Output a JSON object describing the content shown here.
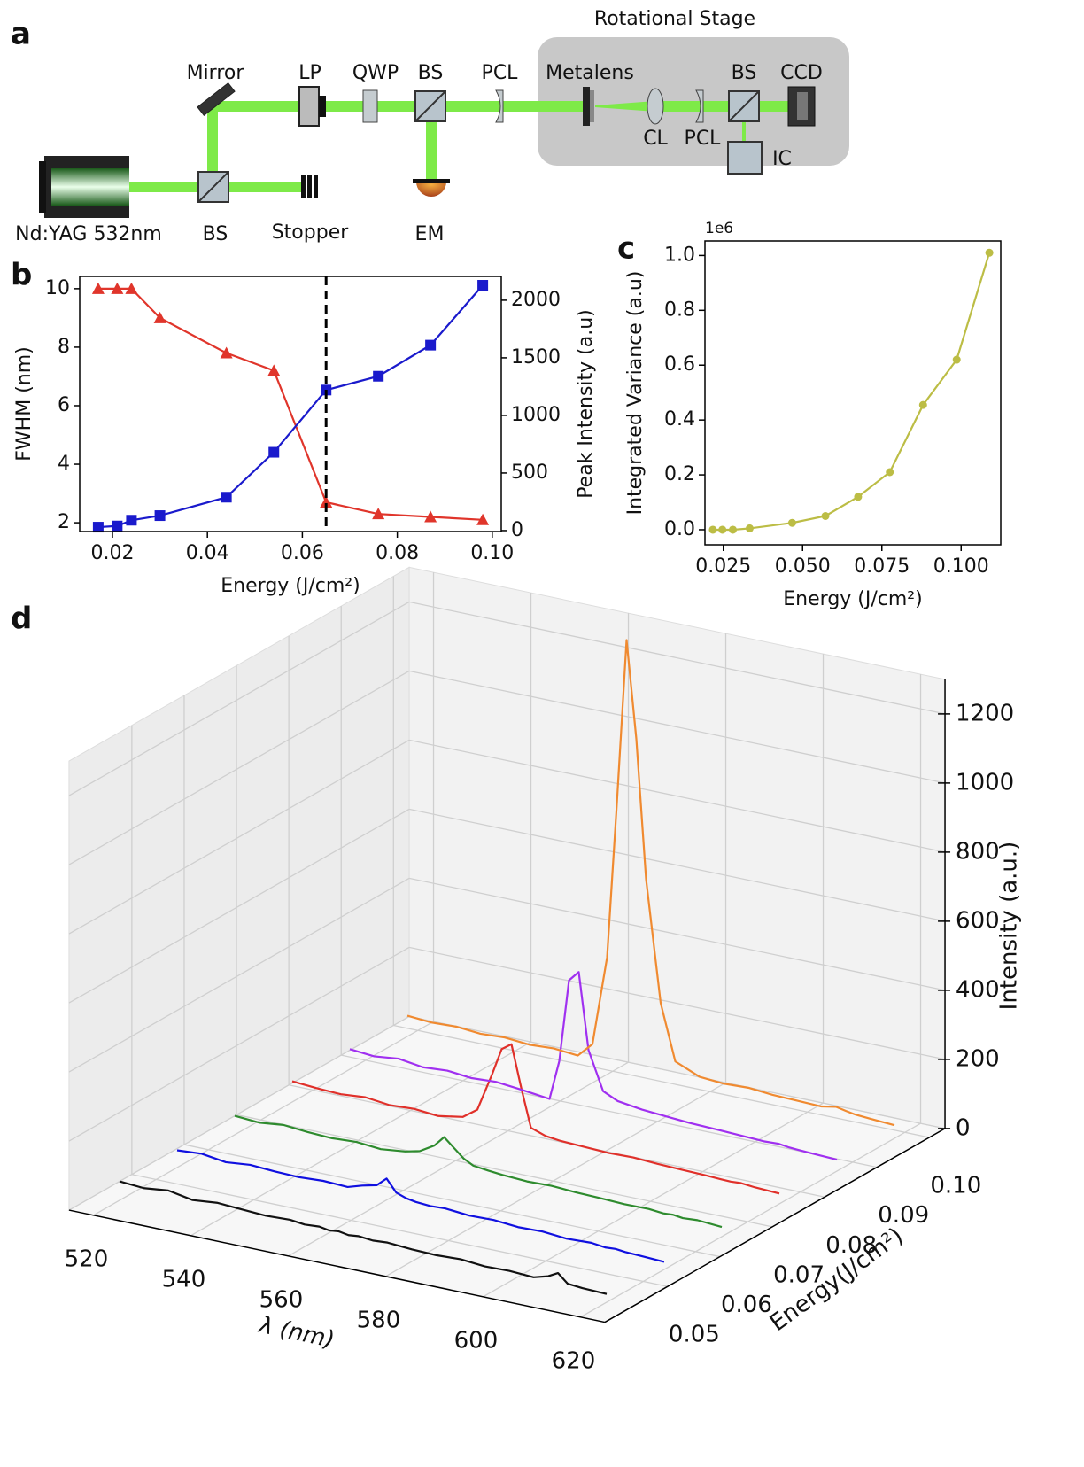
{
  "panel_labels": [
    "a",
    "b",
    "c",
    "d"
  ],
  "diagram": {
    "labels": [
      "Rotational Stage",
      "Mirror",
      "LP",
      "QWP",
      "BS",
      "PCL",
      "Metalens",
      "BS",
      "CCD",
      "CL",
      "PCL",
      "IC",
      "Nd:YAG 532nm",
      "BS",
      "Stopper",
      "EM"
    ]
  },
  "chart_data": [
    {
      "type": "line",
      "xlabel": "Energy (J/cm²)",
      "ylabel": "FWHM (nm)",
      "y2label": "Peak Intensity (a.u)",
      "x": [
        0.017,
        0.021,
        0.024,
        0.03,
        0.044,
        0.054,
        0.065,
        0.076,
        0.087,
        0.098
      ],
      "series": [
        {
          "color": "#e0352b",
          "marker": "triangle",
          "values": [
            10,
            10,
            10,
            9,
            7.8,
            7.2,
            2.7,
            2.3,
            2.2,
            2.1
          ]
        },
        {
          "color": "#1a1acc",
          "marker": "square",
          "axis": "y2",
          "values": [
            30,
            40,
            90,
            130,
            290,
            680,
            1220,
            1340,
            1610,
            2130
          ]
        }
      ],
      "y_color": "#e0352b",
      "y2_color": "#1a1acc",
      "vline": 0.065,
      "xlim": [
        0.0131,
        0.1019
      ],
      "xticks": [
        0.02,
        0.04,
        0.06,
        0.08,
        {
          "value": 0.1,
          "label": "0.10"
        }
      ],
      "ylim": [
        1.7,
        10.42
      ],
      "yticks": [
        2,
        4,
        6,
        8,
        10
      ],
      "y2lim": [
        -8,
        2207
      ],
      "y2ticks": [
        0,
        500,
        1000,
        1500,
        2000
      ]
    },
    {
      "type": "line",
      "xlabel": "Energy (J/cm²)",
      "ylabel": "Integrated Variance (a.u)",
      "offset_label": "1e6",
      "x": [
        0.0217,
        0.0247,
        0.028,
        0.0333,
        0.0467,
        0.0572,
        0.0675,
        0.0775,
        0.088,
        0.0986,
        0.1089
      ],
      "series": [
        {
          "color": "#bcbd45",
          "marker": "circle",
          "values": [
            0,
            0,
            0,
            0.005,
            0.025,
            0.05,
            0.12,
            0.21,
            0.455,
            0.62,
            1.01
          ]
        }
      ],
      "xlim": [
        0.0192,
        0.1125
      ],
      "xticks": [
        0.025,
        {
          "value": 0.05,
          "label": "0.050"
        },
        0.075,
        {
          "value": 0.1,
          "label": "0.100"
        }
      ],
      "ylim": [
        -0.055,
        1.053
      ],
      "yticks": [
        {
          "value": 0,
          "label": "0.0"
        },
        0.2,
        0.4,
        0.6,
        0.8,
        {
          "value": 1,
          "label": "1.0"
        }
      ]
    },
    {
      "type": "line3d",
      "xlabel": "λ (nm)",
      "ylabel": "Energy(J/cm²)",
      "zlabel": "Intensity (a.u.)",
      "x": [
        520,
        525,
        530,
        535,
        540,
        545,
        550,
        555,
        558,
        561,
        563,
        565,
        567,
        569,
        572,
        575,
        580,
        585,
        590,
        595,
        600,
        605,
        608,
        610,
        612,
        615,
        620
      ],
      "series": [
        {
          "color": "#111111",
          "energy": 0.043,
          "values": [
            55,
            50,
            58,
            45,
            52,
            48,
            44,
            47,
            42,
            45,
            40,
            43,
            38,
            41,
            37,
            40,
            35,
            33,
            36,
            30,
            32,
            28,
            40,
            55,
            30,
            26,
            24
          ]
        },
        {
          "color": "#1010e0",
          "energy": 0.054,
          "values": [
            50,
            55,
            45,
            52,
            48,
            46,
            50,
            47,
            60,
            70,
            95,
            60,
            50,
            45,
            42,
            44,
            38,
            40,
            34,
            36,
            30,
            33,
            28,
            30,
            27,
            25,
            22
          ]
        },
        {
          "color": "#2e8b2e",
          "energy": 0.065,
          "values": [
            55,
            50,
            58,
            52,
            49,
            53,
            47,
            55,
            65,
            90,
            120,
            95,
            70,
            55,
            50,
            46,
            42,
            44,
            40,
            38,
            35,
            36,
            32,
            34,
            30,
            33,
            28
          ]
        },
        {
          "color": "#e0302a",
          "energy": 0.076,
          "values": [
            60,
            55,
            52,
            58,
            50,
            54,
            48,
            60,
            90,
            200,
            280,
            300,
            180,
            70,
            55,
            50,
            47,
            44,
            46,
            42,
            40,
            38,
            36,
            35,
            37,
            33,
            30
          ]
        },
        {
          "color": "#a030f0",
          "energy": 0.087,
          "values": [
            58,
            52,
            60,
            50,
            55,
            48,
            52,
            45,
            40,
            35,
            150,
            390,
            420,
            200,
            90,
            70,
            60,
            55,
            50,
            48,
            45,
            42,
            44,
            40,
            38,
            36,
            33
          ]
        },
        {
          "color": "#f08a30",
          "energy": 0.098,
          "values": [
            60,
            55,
            58,
            52,
            56,
            50,
            54,
            48,
            90,
            350,
            800,
            1280,
            1000,
            600,
            250,
            90,
            60,
            55,
            58,
            52,
            50,
            48,
            56,
            50,
            45,
            42,
            38
          ]
        }
      ],
      "xlim": [
        515,
        625
      ],
      "xticks": [
        520,
        540,
        560,
        580,
        600,
        620
      ],
      "ylim": [
        0.038,
        0.103
      ],
      "yticks": [
        0.05,
        0.06,
        0.07,
        0.08,
        0.09,
        {
          "value": 0.1,
          "label": "0.10"
        }
      ],
      "zlim": [
        0,
        1300
      ],
      "zticks": [
        0,
        200,
        400,
        600,
        800,
        1000,
        1200
      ]
    }
  ]
}
